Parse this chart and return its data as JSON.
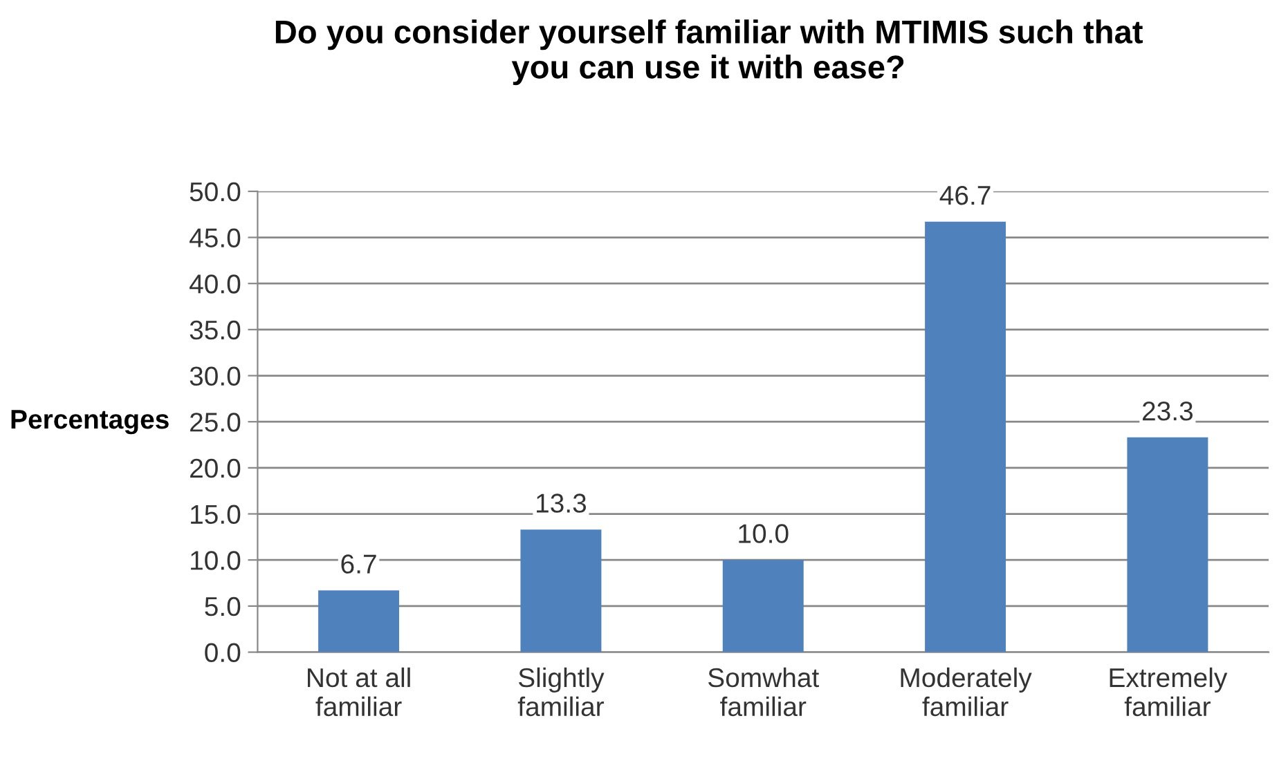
{
  "chart_data": {
    "type": "bar",
    "title": "Do you consider yourself familiar with MTIMIS such that\nyou can use it with ease?",
    "ylabel": "Percentages",
    "categories": [
      "Not at all\nfamiliar",
      "Slightly\nfamiliar",
      "Somwhat\nfamiliar",
      "Moderately\nfamiliar",
      "Extremely\nfamiliar"
    ],
    "values": [
      6.7,
      13.3,
      10.0,
      46.7,
      23.3
    ],
    "color": "#4f81bd",
    "value_labels": [
      "6.7",
      "13.3",
      "10.0",
      "46.7",
      "23.3"
    ],
    "ylim": [
      0,
      50
    ],
    "yticks": [
      {
        "value": 0,
        "label": "0.0"
      },
      {
        "value": 5,
        "label": "5.0"
      },
      {
        "value": 10,
        "label": "10.0"
      },
      {
        "value": 15,
        "label": "15.0"
      },
      {
        "value": 20,
        "label": "20.0"
      },
      {
        "value": 25,
        "label": "25.0"
      },
      {
        "value": 30,
        "label": "30.0"
      },
      {
        "value": 35,
        "label": "35.0"
      },
      {
        "value": 40,
        "label": "40.0"
      },
      {
        "value": 45,
        "label": "45.0"
      },
      {
        "value": 50,
        "label": "50.0"
      }
    ],
    "grid": "y",
    "legend": false
  }
}
